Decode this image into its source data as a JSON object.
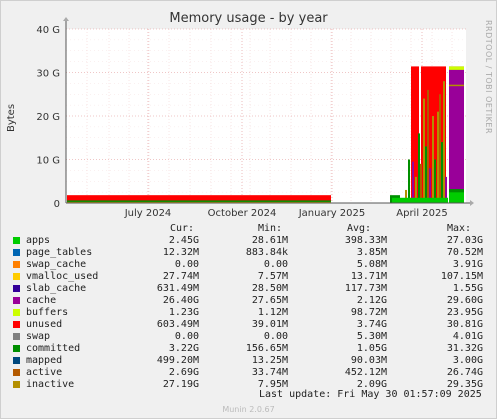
{
  "chart_data": {
    "type": "area",
    "title": "Memory usage - by year",
    "ylabel": "Bytes",
    "side_label": "RRDTOOL / TOBI OETIKER",
    "y_ticks": [
      "0",
      "10 G",
      "20 G",
      "30 G",
      "40 G"
    ],
    "ylim_gb": [
      0,
      40
    ],
    "x_ticks": [
      "July 2024",
      "October 2024",
      "January 2025",
      "April 2025"
    ],
    "grid": true,
    "legend_placement": "bottom",
    "legend_columns": [
      "Cur:",
      "Min:",
      "Avg:",
      "Max:"
    ],
    "series": [
      {
        "name": "apps",
        "color": "#00cc00",
        "cur": "2.45G",
        "min": "28.61M",
        "avg": "398.33M",
        "max": "27.03G"
      },
      {
        "name": "page_tables",
        "color": "#0066b3",
        "cur": "12.32M",
        "min": "883.84k",
        "avg": "3.85M",
        "max": "70.52M"
      },
      {
        "name": "swap_cache",
        "color": "#ff8000",
        "cur": "0.00",
        "min": "0.00",
        "avg": "5.08M",
        "max": "3.91G"
      },
      {
        "name": "vmalloc_used",
        "color": "#ffcc00",
        "cur": "27.74M",
        "min": "7.57M",
        "avg": "13.71M",
        "max": "107.15M"
      },
      {
        "name": "slab_cache",
        "color": "#330099",
        "cur": "631.49M",
        "min": "28.50M",
        "avg": "117.73M",
        "max": "1.55G"
      },
      {
        "name": "cache",
        "color": "#990099",
        "cur": "26.40G",
        "min": "27.65M",
        "avg": "2.12G",
        "max": "29.60G"
      },
      {
        "name": "buffers",
        "color": "#ccff00",
        "cur": "1.23G",
        "min": "1.12M",
        "avg": "98.72M",
        "max": "23.95G"
      },
      {
        "name": "unused",
        "color": "#ff0000",
        "cur": "603.49M",
        "min": "39.01M",
        "avg": "3.74G",
        "max": "30.81G"
      },
      {
        "name": "swap",
        "color": "#808080",
        "cur": "0.00",
        "min": "0.00",
        "avg": "5.30M",
        "max": "4.01G"
      },
      {
        "name": "committed",
        "color": "#008f00",
        "cur": "3.22G",
        "min": "156.65M",
        "avg": "1.05G",
        "max": "31.32G"
      },
      {
        "name": "mapped",
        "color": "#00487d",
        "cur": "499.20M",
        "min": "13.25M",
        "avg": "90.03M",
        "max": "3.00G"
      },
      {
        "name": "active",
        "color": "#b35a00",
        "cur": "2.69G",
        "min": "33.74M",
        "avg": "452.12M",
        "max": "26.74G"
      },
      {
        "name": "inactive",
        "color": "#b38f00",
        "cur": "27.19G",
        "min": "7.95M",
        "avg": "2.09G",
        "max": "29.35G"
      }
    ],
    "last_update": "Last update: Fri May 30 01:57:09 2025",
    "generator": "Munin 2.0.67"
  }
}
